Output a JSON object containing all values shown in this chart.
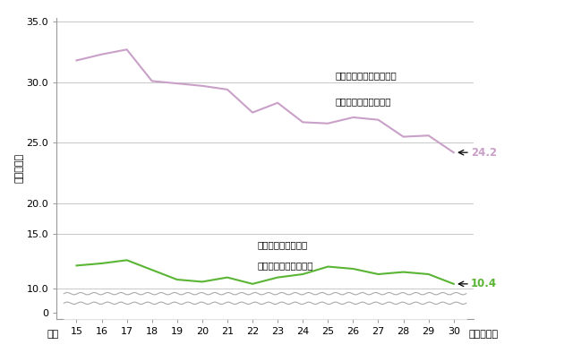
{
  "years": [
    15,
    16,
    17,
    18,
    19,
    20,
    21,
    22,
    23,
    24,
    25,
    26,
    27,
    28,
    29,
    30
  ],
  "purple_values": [
    31.8,
    32.3,
    32.7,
    30.1,
    29.9,
    29.7,
    29.4,
    27.5,
    28.3,
    26.7,
    26.6,
    27.1,
    26.9,
    25.5,
    25.6,
    24.2
  ],
  "green_values": [
    12.1,
    12.3,
    12.6,
    11.7,
    10.8,
    10.6,
    11.0,
    10.4,
    11.0,
    11.3,
    12.0,
    11.8,
    11.3,
    11.5,
    11.3,
    10.4
  ],
  "purple_color": "#c9a0c8",
  "green_color": "#5ab535",
  "purple_label_line1": "満期釈放等出所受刑者に",
  "purple_label_line2": "おける２年以内再入率",
  "green_label_line1": "仮釈放出所受刑者に",
  "green_label_line2": "おける２年以内再入率",
  "purple_end_value": "24.2",
  "green_end_value": "10.4",
  "ylabel": "割合（％）",
  "xlabel_right": "年次（年）",
  "x_prefix": "平成",
  "background_color": "#ffffff",
  "grid_color": "#c8c8c8",
  "spine_color": "#999999"
}
